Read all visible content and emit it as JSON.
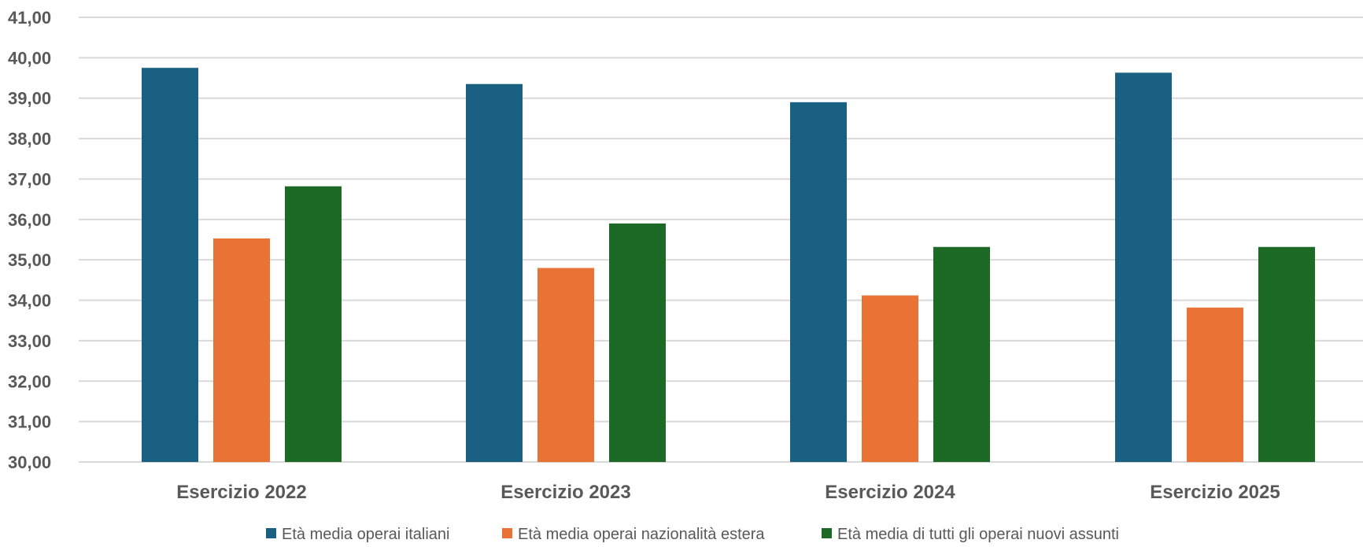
{
  "chart_data": {
    "type": "bar",
    "title": "",
    "xlabel": "",
    "ylabel": "",
    "categories": [
      "Esercizio 2022",
      "Esercizio 2023",
      "Esercizio 2024",
      "Esercizio 2025"
    ],
    "series": [
      {
        "name": "Età media operai italiani",
        "color": "#1a6083",
        "values": [
          39.75,
          39.35,
          38.9,
          39.63
        ]
      },
      {
        "name": "Età media operai nazionalità estera",
        "color": "#e97334",
        "values": [
          35.53,
          34.8,
          34.12,
          33.82
        ]
      },
      {
        "name": "Età media di tutti gli operai nuovi assunti",
        "color": "#1c6a26",
        "values": [
          36.82,
          35.9,
          35.32,
          35.32
        ]
      }
    ],
    "ylim": [
      30,
      41
    ],
    "yticks": [
      "30,00",
      "31,00",
      "32,00",
      "33,00",
      "34,00",
      "35,00",
      "36,00",
      "37,00",
      "38,00",
      "39,00",
      "40,00",
      "41,00"
    ],
    "grid": true,
    "legend_position": "bottom"
  }
}
